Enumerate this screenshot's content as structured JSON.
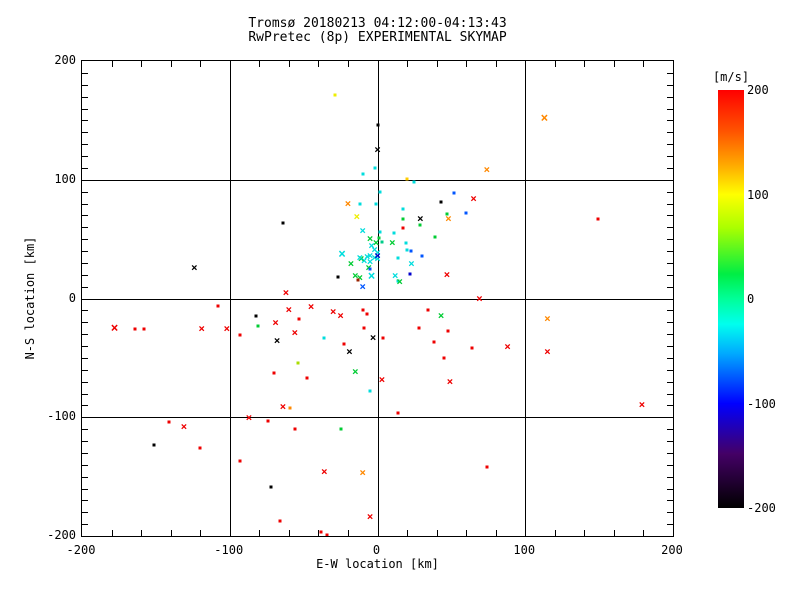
{
  "title": {
    "line1": "Tromsø 20180213 04:12:00-04:13:43",
    "line2": "RwPretec (8p) EXPERIMENTAL SKYMAP"
  },
  "chart_data": {
    "type": "scatter",
    "xlabel": "E-W location [km]",
    "ylabel": "N-S location [km]",
    "xlim": [
      -200,
      200
    ],
    "ylim": [
      -200,
      200
    ],
    "xticks": [
      -200,
      -100,
      0,
      100,
      200
    ],
    "yticks": [
      -200,
      -100,
      0,
      100,
      200
    ],
    "x_minor_step": 20,
    "y_minor_step": 10,
    "grid": true,
    "legend_position": "none",
    "colorbar": {
      "title": "[m/s]",
      "min": -200,
      "max": 200,
      "ticks": [
        200,
        100,
        0,
        -100,
        -200
      ],
      "stops": [
        {
          "p": 0.0,
          "c": "#ff0000"
        },
        {
          "p": 0.1,
          "c": "#ff5500"
        },
        {
          "p": 0.18,
          "c": "#ffaa00"
        },
        {
          "p": 0.25,
          "c": "#ffff00"
        },
        {
          "p": 0.33,
          "c": "#aaff00"
        },
        {
          "p": 0.44,
          "c": "#00ee44"
        },
        {
          "p": 0.5,
          "c": "#00ff99"
        },
        {
          "p": 0.56,
          "c": "#00ffee"
        },
        {
          "p": 0.63,
          "c": "#00aaff"
        },
        {
          "p": 0.75,
          "c": "#0000ff"
        },
        {
          "p": 0.87,
          "c": "#440066"
        },
        {
          "p": 1.0,
          "c": "#000000"
        }
      ]
    },
    "palette": {
      "red": "#ee0000",
      "orange": "#ff8800",
      "gold": "#ffcc00",
      "yellow": "#eeee00",
      "chart": "#aadd00",
      "green": "#00cc33",
      "teal": "#00cc88",
      "cyan": "#00dddd",
      "blue": "#0055ff",
      "navy": "#0000cc",
      "black": "#000000",
      "maroon": "#992200"
    },
    "points": [
      {
        "x": -29,
        "y": 171,
        "c": "yellow",
        "m": "p"
      },
      {
        "x": 0,
        "y": 146,
        "c": "black",
        "m": "p"
      },
      {
        "x": 0,
        "y": 125,
        "c": "black",
        "m": "x"
      },
      {
        "x": -2,
        "y": 110,
        "c": "cyan",
        "m": "p"
      },
      {
        "x": 20,
        "y": 101,
        "c": "gold",
        "m": "p"
      },
      {
        "x": -10,
        "y": 105,
        "c": "cyan",
        "m": "p"
      },
      {
        "x": 2,
        "y": 90,
        "c": "cyan",
        "m": "p"
      },
      {
        "x": 25,
        "y": 98,
        "c": "cyan",
        "m": "p"
      },
      {
        "x": 52,
        "y": 89,
        "c": "blue",
        "m": "p"
      },
      {
        "x": 43,
        "y": 81,
        "c": "black",
        "m": "p"
      },
      {
        "x": 65,
        "y": 84,
        "c": "red",
        "m": "x"
      },
      {
        "x": 74,
        "y": 108,
        "c": "orange",
        "m": "x"
      },
      {
        "x": 113,
        "y": 151,
        "c": "orange",
        "m": "x",
        "s": 13
      },
      {
        "x": 149,
        "y": 67,
        "c": "red",
        "m": "p"
      },
      {
        "x": -20,
        "y": 80,
        "c": "orange",
        "m": "x"
      },
      {
        "x": -14,
        "y": 69,
        "c": "yellow",
        "m": "x"
      },
      {
        "x": -12,
        "y": 80,
        "c": "cyan",
        "m": "p"
      },
      {
        "x": -1,
        "y": 80,
        "c": "cyan",
        "m": "p"
      },
      {
        "x": -10,
        "y": 57,
        "c": "cyan",
        "m": "x"
      },
      {
        "x": 2,
        "y": 56,
        "c": "cyan",
        "m": "p"
      },
      {
        "x": 11,
        "y": 55,
        "c": "cyan",
        "m": "p"
      },
      {
        "x": 17,
        "y": 75,
        "c": "cyan",
        "m": "p"
      },
      {
        "x": 17,
        "y": 67,
        "c": "green",
        "m": "p"
      },
      {
        "x": 29,
        "y": 67,
        "c": "black",
        "m": "x"
      },
      {
        "x": 29,
        "y": 62,
        "c": "green",
        "m": "p"
      },
      {
        "x": 47,
        "y": 71,
        "c": "green",
        "m": "p"
      },
      {
        "x": 48,
        "y": 67,
        "c": "orange",
        "m": "x"
      },
      {
        "x": 60,
        "y": 72,
        "c": "blue",
        "m": "p"
      },
      {
        "x": 17,
        "y": 59,
        "c": "red",
        "m": "p"
      },
      {
        "x": 39,
        "y": 52,
        "c": "green",
        "m": "p"
      },
      {
        "x": 19,
        "y": 47,
        "c": "cyan",
        "m": "p"
      },
      {
        "x": 23,
        "y": 40,
        "c": "blue",
        "m": "p"
      },
      {
        "x": 30,
        "y": 36,
        "c": "blue",
        "m": "p"
      },
      {
        "x": 14,
        "y": 34,
        "c": "cyan",
        "m": "p"
      },
      {
        "x": 23,
        "y": 29,
        "c": "cyan",
        "m": "x"
      },
      {
        "x": 22,
        "y": 21,
        "c": "navy",
        "m": "p"
      },
      {
        "x": 14,
        "y": 15,
        "c": "cyan",
        "m": "p"
      },
      {
        "x": 47,
        "y": 20,
        "c": "red",
        "m": "x"
      },
      {
        "x": 10,
        "y": 47,
        "c": "green",
        "m": "x"
      },
      {
        "x": 20,
        "y": 41,
        "c": "cyan",
        "m": "p"
      },
      {
        "x": -24,
        "y": 37,
        "c": "cyan",
        "m": "x",
        "s": 13
      },
      {
        "x": -5,
        "y": 50,
        "c": "green",
        "m": "x"
      },
      {
        "x": -1,
        "y": 47,
        "c": "green",
        "m": "x"
      },
      {
        "x": 1,
        "y": 51,
        "c": "green",
        "m": "p"
      },
      {
        "x": 3,
        "y": 48,
        "c": "teal",
        "m": "p"
      },
      {
        "x": -4,
        "y": 44,
        "c": "cyan",
        "m": "x"
      },
      {
        "x": -2,
        "y": 41,
        "c": "cyan",
        "m": "x"
      },
      {
        "x": 0,
        "y": 38,
        "c": "cyan",
        "m": "x"
      },
      {
        "x": -5,
        "y": 36,
        "c": "cyan",
        "m": "x"
      },
      {
        "x": -7,
        "y": 35,
        "c": "cyan",
        "m": "x"
      },
      {
        "x": -2,
        "y": 34,
        "c": "cyan",
        "m": "x"
      },
      {
        "x": 0,
        "y": 33,
        "c": "cyan",
        "m": "x"
      },
      {
        "x": -5,
        "y": 31,
        "c": "cyan",
        "m": "x"
      },
      {
        "x": -9,
        "y": 32,
        "c": "cyan",
        "m": "x"
      },
      {
        "x": 0,
        "y": 36,
        "c": "navy",
        "m": "x"
      },
      {
        "x": -11,
        "y": 33,
        "c": "green",
        "m": "x"
      },
      {
        "x": -12,
        "y": 34,
        "c": "cyan",
        "m": "x"
      },
      {
        "x": -18,
        "y": 29,
        "c": "green",
        "m": "x"
      },
      {
        "x": -6,
        "y": 26,
        "c": "green",
        "m": "x"
      },
      {
        "x": -5,
        "y": 25,
        "c": "blue",
        "m": "p"
      },
      {
        "x": -4,
        "y": 18,
        "c": "cyan",
        "m": "x",
        "s": 13
      },
      {
        "x": -15,
        "y": 19,
        "c": "green",
        "m": "x"
      },
      {
        "x": -12,
        "y": 17,
        "c": "green",
        "m": "x"
      },
      {
        "x": -13,
        "y": 16,
        "c": "maroon",
        "m": "p"
      },
      {
        "x": -27,
        "y": 18,
        "c": "black",
        "m": "p"
      },
      {
        "x": -10,
        "y": 10,
        "c": "blue",
        "m": "x"
      },
      {
        "x": 12,
        "y": 19,
        "c": "cyan",
        "m": "x"
      },
      {
        "x": 15,
        "y": 14,
        "c": "green",
        "m": "x"
      },
      {
        "x": -64,
        "y": 64,
        "c": "black",
        "m": "p"
      },
      {
        "x": -124,
        "y": 26,
        "c": "black",
        "m": "x"
      },
      {
        "x": -62,
        "y": 5,
        "c": "red",
        "m": "x"
      },
      {
        "x": -108,
        "y": -6,
        "c": "red",
        "m": "p"
      },
      {
        "x": -60,
        "y": -10,
        "c": "red",
        "m": "x"
      },
      {
        "x": -45,
        "y": -7,
        "c": "red",
        "m": "x"
      },
      {
        "x": -82,
        "y": -15,
        "c": "black",
        "m": "p"
      },
      {
        "x": -81,
        "y": -23,
        "c": "green",
        "m": "p"
      },
      {
        "x": -69,
        "y": -21,
        "c": "red",
        "m": "x"
      },
      {
        "x": -53,
        "y": -17,
        "c": "red",
        "m": "p"
      },
      {
        "x": -178,
        "y": -26,
        "c": "red",
        "m": "x",
        "s": 13
      },
      {
        "x": -164,
        "y": -26,
        "c": "red",
        "m": "p"
      },
      {
        "x": -158,
        "y": -26,
        "c": "red",
        "m": "p"
      },
      {
        "x": -119,
        "y": -26,
        "c": "red",
        "m": "x"
      },
      {
        "x": -102,
        "y": -26,
        "c": "red",
        "m": "x"
      },
      {
        "x": 69,
        "y": 0,
        "c": "red",
        "m": "x"
      },
      {
        "x": 115,
        "y": -17,
        "c": "orange",
        "m": "x"
      },
      {
        "x": -30,
        "y": -11,
        "c": "red",
        "m": "x"
      },
      {
        "x": -25,
        "y": -15,
        "c": "red",
        "m": "x"
      },
      {
        "x": -10,
        "y": -10,
        "c": "red",
        "m": "p"
      },
      {
        "x": -7,
        "y": -13,
        "c": "red",
        "m": "p"
      },
      {
        "x": -9,
        "y": -25,
        "c": "red",
        "m": "p"
      },
      {
        "x": -36,
        "y": -33,
        "c": "cyan",
        "m": "p"
      },
      {
        "x": -23,
        "y": -38,
        "c": "red",
        "m": "p"
      },
      {
        "x": -3,
        "y": -33,
        "c": "black",
        "m": "x"
      },
      {
        "x": 4,
        "y": -33,
        "c": "red",
        "m": "p"
      },
      {
        "x": -19,
        "y": -45,
        "c": "black",
        "m": "x"
      },
      {
        "x": -15,
        "y": -62,
        "c": "green",
        "m": "x"
      },
      {
        "x": 3,
        "y": -69,
        "c": "red",
        "m": "x"
      },
      {
        "x": -5,
        "y": -78,
        "c": "cyan",
        "m": "p"
      },
      {
        "x": -48,
        "y": -67,
        "c": "red",
        "m": "p"
      },
      {
        "x": 34,
        "y": -10,
        "c": "red",
        "m": "p"
      },
      {
        "x": 43,
        "y": -15,
        "c": "green",
        "m": "x"
      },
      {
        "x": 28,
        "y": -25,
        "c": "red",
        "m": "p"
      },
      {
        "x": 48,
        "y": -27,
        "c": "red",
        "m": "p"
      },
      {
        "x": 38,
        "y": -37,
        "c": "red",
        "m": "p"
      },
      {
        "x": 64,
        "y": -42,
        "c": "red",
        "m": "p"
      },
      {
        "x": 45,
        "y": -50,
        "c": "red",
        "m": "p"
      },
      {
        "x": 49,
        "y": -70,
        "c": "red",
        "m": "x"
      },
      {
        "x": 14,
        "y": -96,
        "c": "red",
        "m": "p"
      },
      {
        "x": -93,
        "y": -31,
        "c": "red",
        "m": "p"
      },
      {
        "x": -68,
        "y": -36,
        "c": "black",
        "m": "x"
      },
      {
        "x": -56,
        "y": -29,
        "c": "red",
        "m": "x"
      },
      {
        "x": -54,
        "y": -54,
        "c": "chart",
        "m": "p"
      },
      {
        "x": -70,
        "y": -63,
        "c": "red",
        "m": "p"
      },
      {
        "x": -64,
        "y": -91,
        "c": "red",
        "m": "x"
      },
      {
        "x": -59,
        "y": -92,
        "c": "orange",
        "m": "p"
      },
      {
        "x": -141,
        "y": -104,
        "c": "red",
        "m": "p"
      },
      {
        "x": -131,
        "y": -108,
        "c": "red",
        "m": "x"
      },
      {
        "x": -87,
        "y": -101,
        "c": "red",
        "m": "x"
      },
      {
        "x": -74,
        "y": -103,
        "c": "red",
        "m": "p"
      },
      {
        "x": -56,
        "y": -110,
        "c": "red",
        "m": "p"
      },
      {
        "x": -151,
        "y": -123,
        "c": "black",
        "m": "p"
      },
      {
        "x": -120,
        "y": -126,
        "c": "red",
        "m": "p"
      },
      {
        "x": -93,
        "y": -137,
        "c": "red",
        "m": "p"
      },
      {
        "x": -72,
        "y": -159,
        "c": "black",
        "m": "p"
      },
      {
        "x": -66,
        "y": -187,
        "c": "red",
        "m": "p"
      },
      {
        "x": -25,
        "y": -110,
        "c": "green",
        "m": "p"
      },
      {
        "x": -36,
        "y": -146,
        "c": "red",
        "m": "x"
      },
      {
        "x": -10,
        "y": -147,
        "c": "orange",
        "m": "x"
      },
      {
        "x": -5,
        "y": -184,
        "c": "red",
        "m": "x"
      },
      {
        "x": -38,
        "y": -197,
        "c": "red",
        "m": "p"
      },
      {
        "x": -34,
        "y": -199,
        "c": "red",
        "m": "p"
      },
      {
        "x": 88,
        "y": -41,
        "c": "red",
        "m": "x"
      },
      {
        "x": 115,
        "y": -45,
        "c": "red",
        "m": "x"
      },
      {
        "x": 179,
        "y": -90,
        "c": "red",
        "m": "x"
      },
      {
        "x": 74,
        "y": -142,
        "c": "red",
        "m": "p"
      }
    ]
  }
}
